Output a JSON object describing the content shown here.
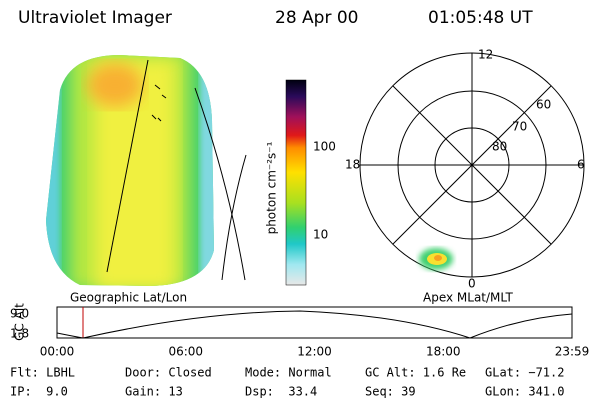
{
  "header": {
    "title": "Ultraviolet Imager",
    "date": "28 Apr 00",
    "time": "01:05:48 UT"
  },
  "colorbar": {
    "label": "photon cm⁻²s⁻¹",
    "ticks": [
      "100",
      "10"
    ]
  },
  "polar": {
    "hours": [
      "12",
      "18",
      "6",
      "0"
    ],
    "latitudes": [
      "60",
      "70",
      "80"
    ]
  },
  "captions": {
    "left": "Geographic Lat/Lon",
    "right": "Apex MLat/MLT"
  },
  "altitude_plot": {
    "ylabel": "GC Alt",
    "yticks": [
      "9.0",
      "1.8"
    ],
    "xticks": [
      "00:00",
      "06:00",
      "12:00",
      "18:00",
      "23:59"
    ]
  },
  "footer": {
    "rows": [
      [
        "Flt: LBHL",
        "Door: Closed",
        "Mode: Normal",
        "GC Alt: 1.6 Re",
        "GLat: −71.2"
      ],
      [
        "IP:  9.0",
        "Gain: 13",
        "Dsp:  33.4",
        "Seq: 39",
        "GLon: 341.0"
      ]
    ]
  }
}
